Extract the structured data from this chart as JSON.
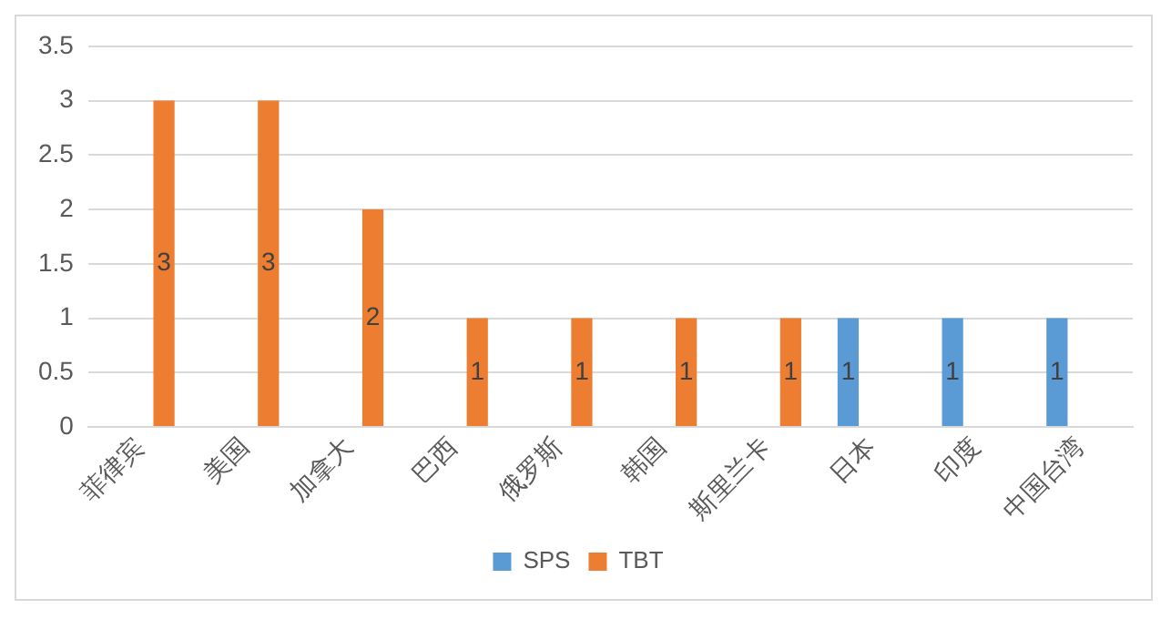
{
  "chart_data": {
    "type": "bar",
    "categories": [
      "菲律宾",
      "美国",
      "加拿大",
      "巴西",
      "俄罗斯",
      "韩国",
      "斯里兰卡",
      "日本",
      "印度",
      "中国台湾"
    ],
    "series": [
      {
        "name": "SPS",
        "color": "#5b9bd5",
        "values": [
          null,
          null,
          null,
          null,
          null,
          null,
          null,
          1,
          1,
          1
        ]
      },
      {
        "name": "TBT",
        "color": "#ed7d31",
        "values": [
          3,
          3,
          2,
          1,
          1,
          1,
          1,
          null,
          null,
          null
        ]
      }
    ],
    "ylim": [
      0,
      3.5
    ],
    "yticks": [
      0,
      0.5,
      1,
      1.5,
      2,
      2.5,
      3,
      3.5
    ],
    "grid": "y",
    "legend": "bottom",
    "data_labels": true
  }
}
